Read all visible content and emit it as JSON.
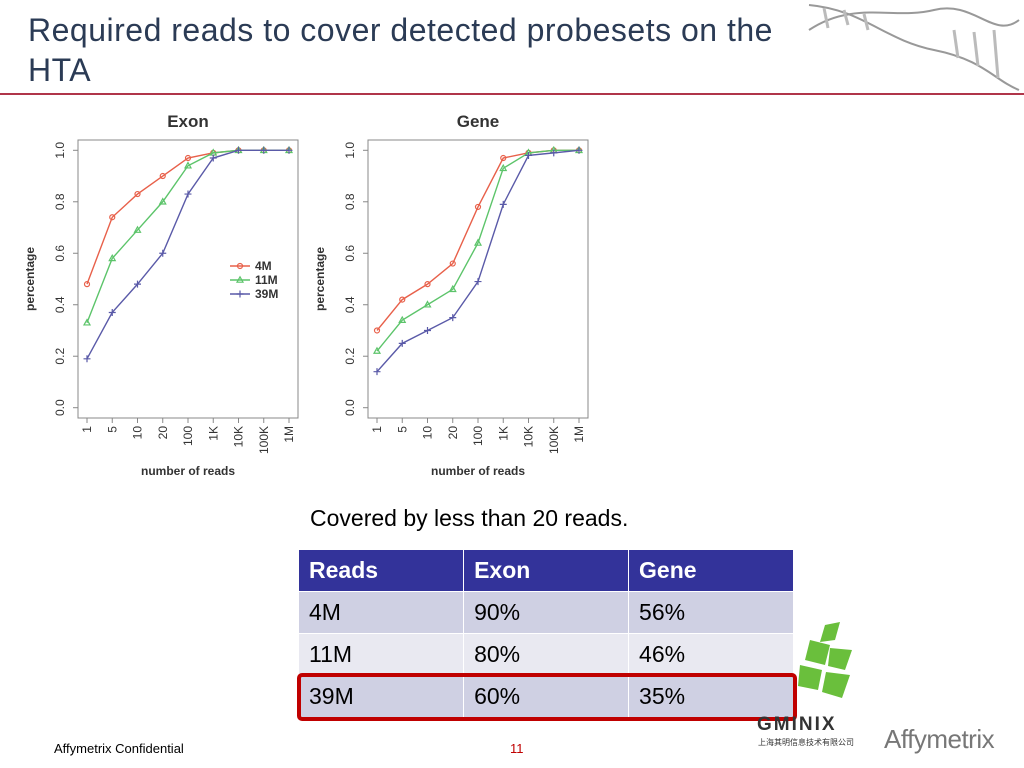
{
  "title": "Required reads to cover detected probesets on the HTA",
  "chart_data": [
    {
      "type": "line",
      "title": "Exon",
      "x_label": "number of reads",
      "y_label": "percentage",
      "categories": [
        "1",
        "5",
        "10",
        "20",
        "100",
        "1K",
        "10K",
        "100K",
        "1M"
      ],
      "ylim": [
        -0.04,
        1.04
      ],
      "yticks": [
        {
          "value": 0,
          "label": "0.0"
        },
        0.2,
        0.4,
        0.6,
        0.8,
        {
          "value": 1,
          "label": "1.0"
        }
      ],
      "legend": "right",
      "series": [
        {
          "name": "4M",
          "color": "#e8604a",
          "marker": "circle",
          "values": [
            0.48,
            0.74,
            0.83,
            0.9,
            0.97,
            0.99,
            1.0,
            1.0,
            1.0
          ]
        },
        {
          "name": "11M",
          "color": "#5cc46a",
          "marker": "triangle",
          "values": [
            0.33,
            0.58,
            0.69,
            0.8,
            0.94,
            0.99,
            1.0,
            1.0,
            1.0
          ]
        },
        {
          "name": "39M",
          "color": "#5a5aa8",
          "marker": "plus",
          "values": [
            0.19,
            0.37,
            0.48,
            0.6,
            0.83,
            0.97,
            1.0,
            1.0,
            1.0
          ]
        }
      ]
    },
    {
      "type": "line",
      "title": "Gene",
      "x_label": "number of reads",
      "y_label": "percentage",
      "categories": [
        "1",
        "5",
        "10",
        "20",
        "100",
        "1K",
        "10K",
        "100K",
        "1M"
      ],
      "ylim": [
        -0.04,
        1.04
      ],
      "yticks": [
        {
          "value": 0,
          "label": "0.0"
        },
        0.2,
        0.4,
        0.6,
        0.8,
        {
          "value": 1,
          "label": "1.0"
        }
      ],
      "series": [
        {
          "color": "#e8604a",
          "marker": "circle",
          "values": [
            0.3,
            0.42,
            0.48,
            0.56,
            0.78,
            0.97,
            0.99,
            1.0,
            1.0
          ]
        },
        {
          "color": "#5cc46a",
          "marker": "triangle",
          "values": [
            0.22,
            0.34,
            0.4,
            0.46,
            0.64,
            0.93,
            0.99,
            1.0,
            1.0
          ]
        },
        {
          "color": "#5a5aa8",
          "marker": "plus",
          "values": [
            0.14,
            0.25,
            0.3,
            0.35,
            0.49,
            0.79,
            0.98,
            0.99,
            1.0
          ]
        }
      ]
    }
  ],
  "caption": "Covered by less than 20 reads.",
  "table": {
    "header": [
      "Reads",
      "Exon",
      "Gene"
    ],
    "rows": [
      [
        "4M",
        "90%",
        "56%"
      ],
      [
        "11M",
        "80%",
        "46%"
      ],
      [
        "39M",
        "60%",
        "35%"
      ]
    ]
  },
  "logos": {
    "gminix": "GMINIX",
    "gminix_sub": "上海其明信息技术有限公司",
    "affymetrix": "Affymetrix"
  },
  "footer": {
    "left": "Affymetrix Confidential",
    "page": "11"
  }
}
